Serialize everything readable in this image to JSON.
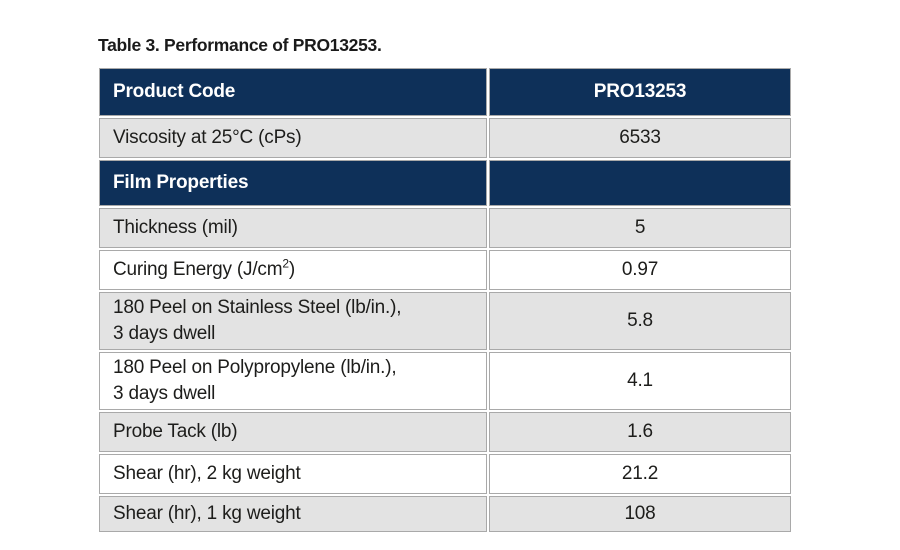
{
  "title": "Table 3. Performance of PRO13253.",
  "colors": {
    "header_navy": "#0e3059",
    "row_gray": "#e3e3e3",
    "row_white": "#ffffff",
    "border_gray": "#a9a9a9",
    "header_text": "#ffffff",
    "body_text": "#1d1d1b"
  },
  "table": {
    "columns": [
      {
        "label": "Product Code"
      },
      {
        "label": "PRO13253"
      }
    ],
    "rows": [
      {
        "label": "Viscosity at 25°C (cPs)",
        "value": "6533"
      },
      {
        "section": "Film Properties"
      },
      {
        "label": "Thickness (mil)",
        "value": "5"
      },
      {
        "label_pre": "Curing Energy (J/cm",
        "label_sup": "2",
        "label_post": ")",
        "value": "0.97"
      },
      {
        "label": "180 Peel on Stainless Steel (lb/in.),",
        "label_line2": "3 days dwell",
        "value": "5.8"
      },
      {
        "label": "180 Peel on Polypropylene (lb/in.),",
        "label_line2": "3 days dwell",
        "value": "4.1"
      },
      {
        "label": "Probe Tack (lb)",
        "value": "1.6"
      },
      {
        "label": "Shear (hr), 2 kg weight",
        "value": "21.2"
      },
      {
        "label": "Shear (hr), 1 kg weight",
        "value": "108"
      }
    ]
  }
}
